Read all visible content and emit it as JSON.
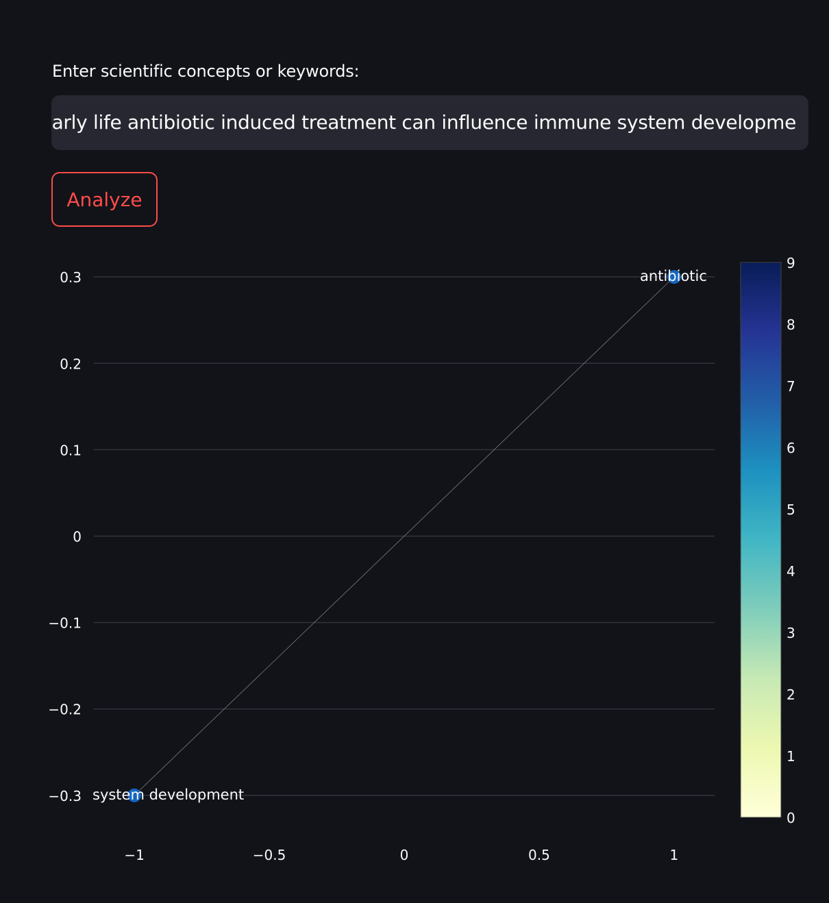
{
  "form": {
    "label": "Enter scientific concepts or keywords:",
    "value": "early life antibiotic induced treatment can influence immune system development:",
    "visible_value": ": early life antibiotic induced treatment can influence immune system developme",
    "button_label": "Analyze"
  },
  "colors": {
    "background": "#111318",
    "input_bg": "#262730",
    "accent": "#ff4b4b",
    "node": "#1565c0"
  },
  "chart_data": {
    "type": "scatter",
    "points": [
      {
        "label": "antibiotic",
        "x": 1,
        "y": 0.3,
        "value": 6
      },
      {
        "label": "system development",
        "x": -1,
        "y": -0.3,
        "value": 6
      }
    ],
    "edges": [
      [
        0,
        1
      ]
    ],
    "xlim": [
      -1.15,
      1.15
    ],
    "ylim": [
      -0.335,
      0.335
    ],
    "xticks": [
      {
        "v": -1,
        "t": "−1"
      },
      {
        "v": -0.5,
        "t": "−0.5"
      },
      {
        "v": 0,
        "t": "0"
      },
      {
        "v": 0.5,
        "t": "0.5"
      },
      {
        "v": 1,
        "t": "1"
      }
    ],
    "yticks": [
      {
        "v": 0.3,
        "t": "0.3"
      },
      {
        "v": 0.2,
        "t": "0.2"
      },
      {
        "v": 0.1,
        "t": "0.1"
      },
      {
        "v": 0,
        "t": "0"
      },
      {
        "v": -0.1,
        "t": "−0.1"
      },
      {
        "v": -0.2,
        "t": "−0.2"
      },
      {
        "v": -0.3,
        "t": "−0.3"
      }
    ],
    "colorbar": {
      "min": 0,
      "max": 9,
      "ticks": [
        "0",
        "1",
        "2",
        "3",
        "4",
        "5",
        "6",
        "7",
        "8",
        "9"
      ],
      "colorscale": "YlGnBu"
    },
    "grid": true,
    "showlegend": false
  }
}
